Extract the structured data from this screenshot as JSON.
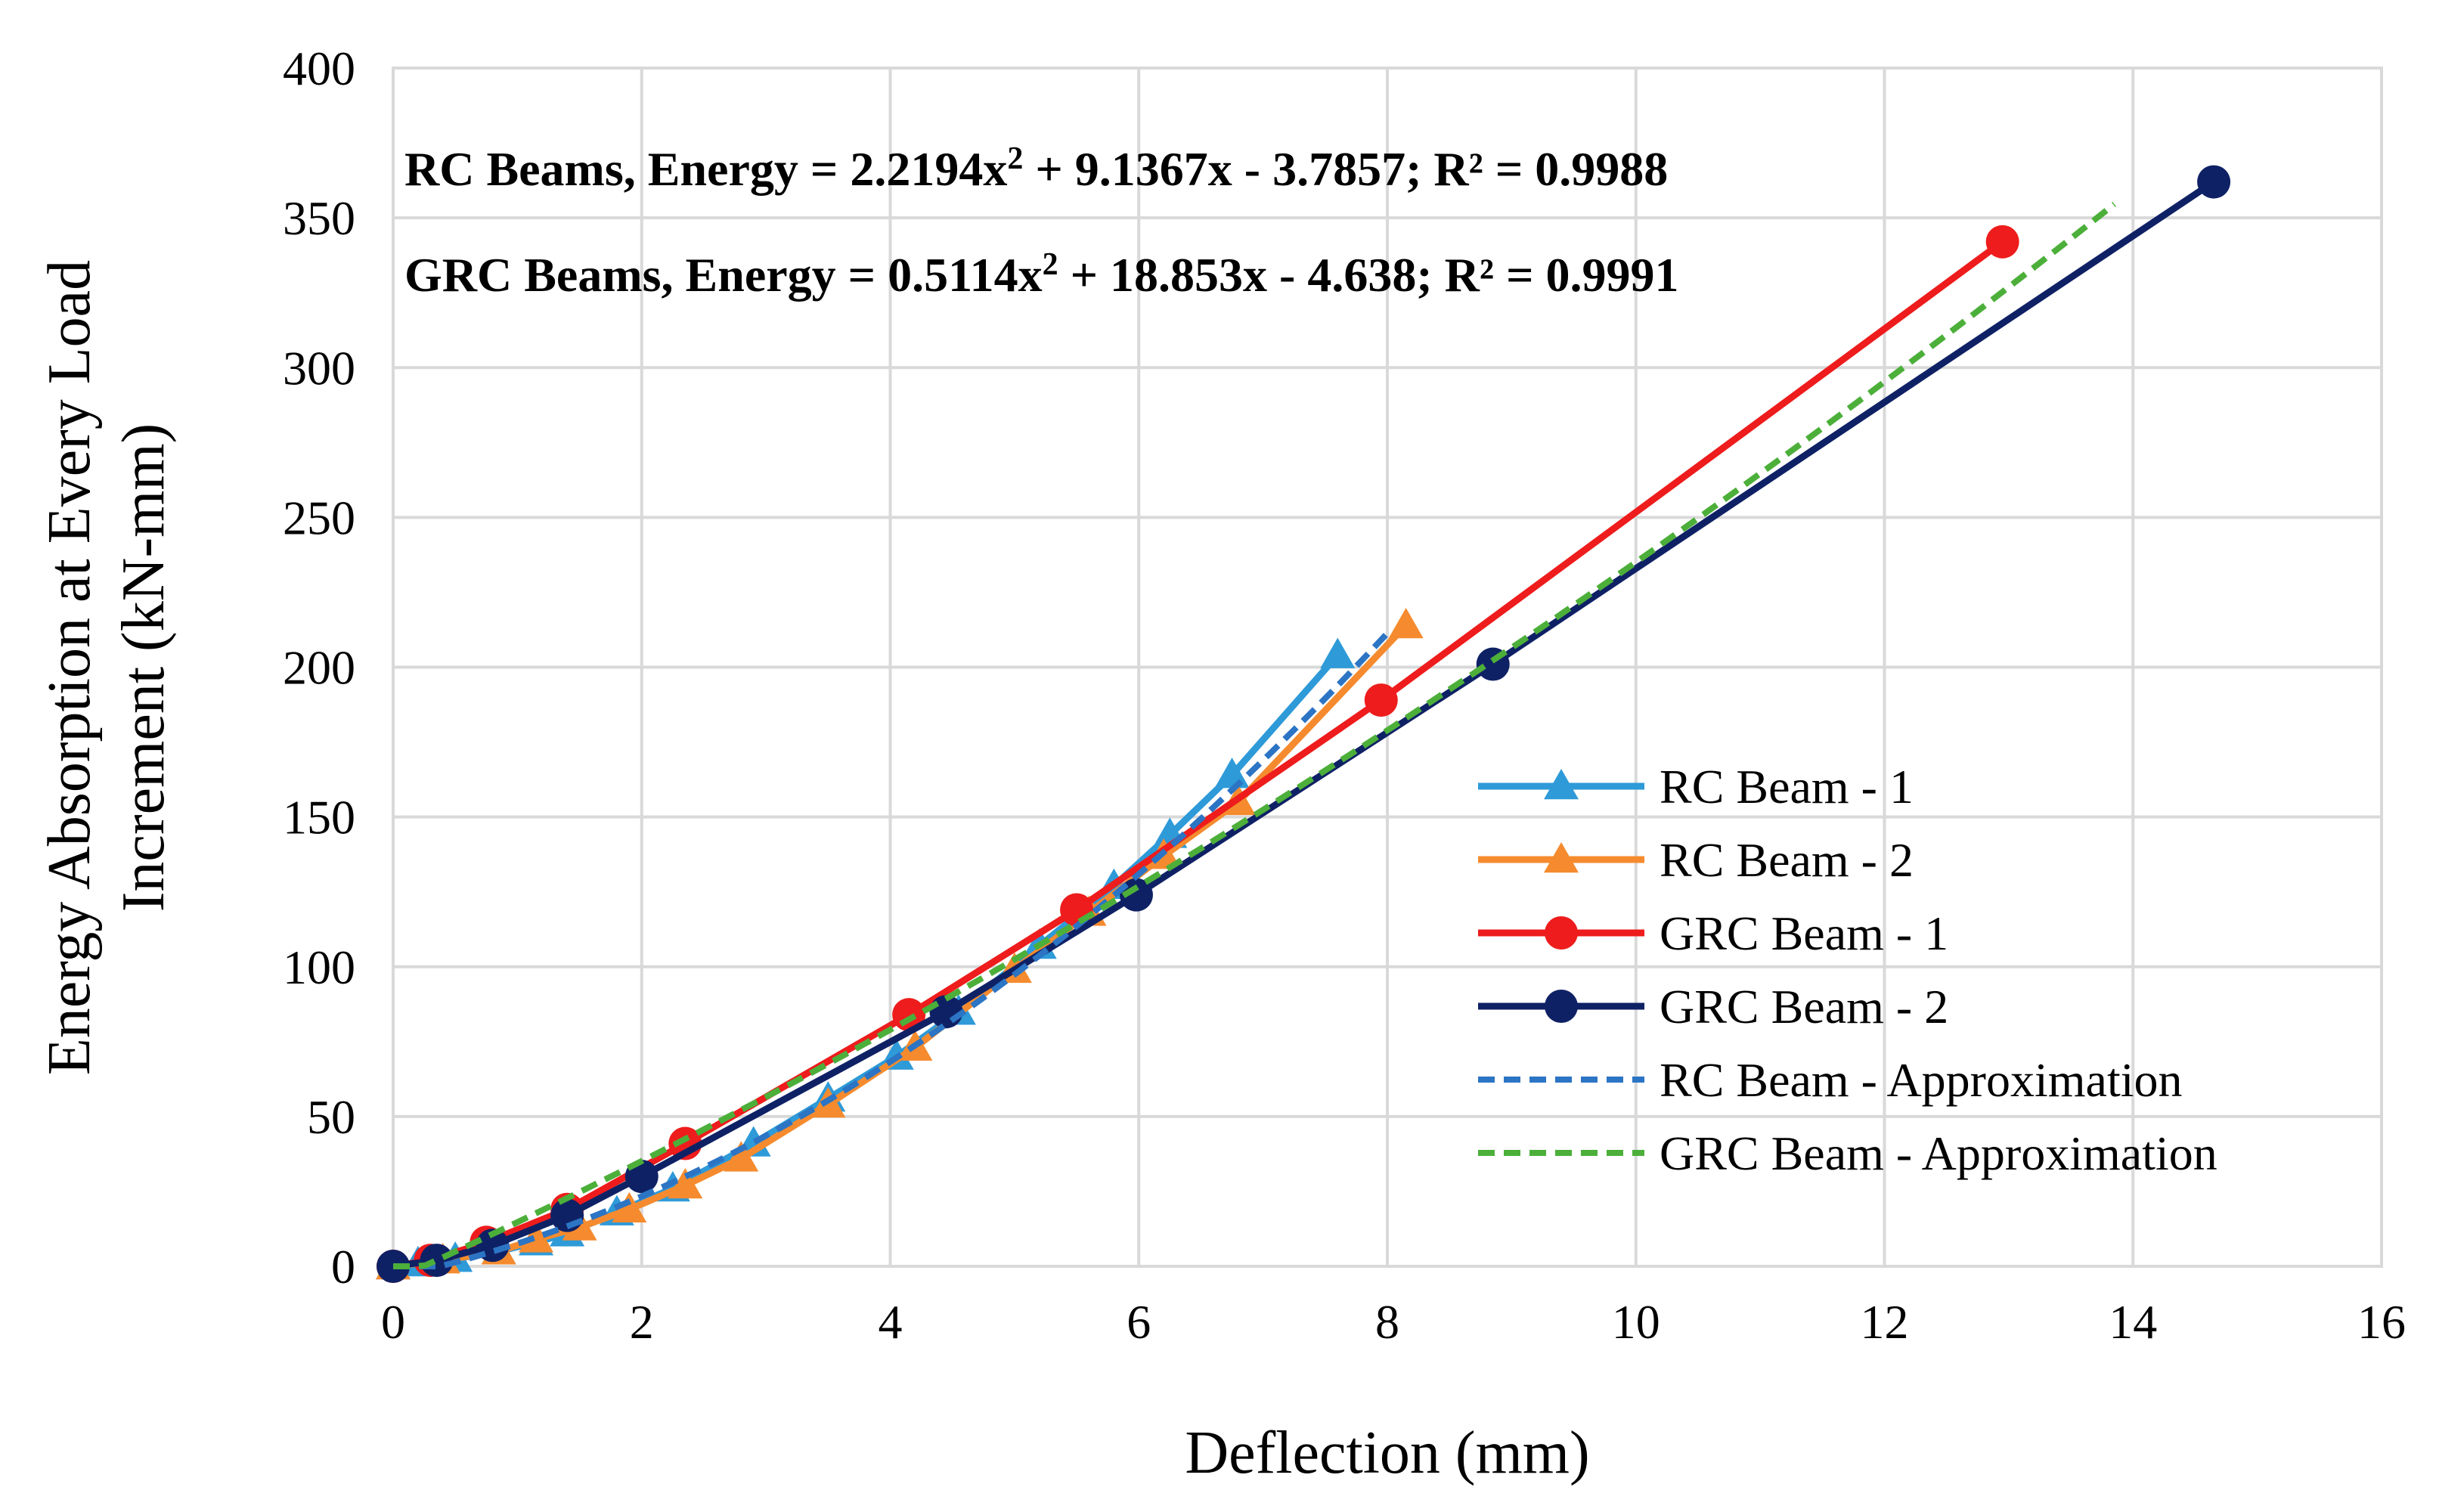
{
  "chart_data": {
    "type": "line",
    "title": "",
    "xlabel": "Deflection (mm)",
    "ylabel_line1": "Energy Absorption at Every Load",
    "ylabel_line2": "Increment (kN-mm)",
    "xlim": [
      0,
      16
    ],
    "ylim": [
      0,
      400
    ],
    "xticks": [
      0,
      2,
      4,
      6,
      8,
      10,
      12,
      14,
      16
    ],
    "yticks": [
      0,
      50,
      100,
      150,
      200,
      250,
      300,
      350,
      400
    ],
    "grid": true,
    "legend_position": "right",
    "annotations": [
      {
        "lead": "RC Beams, Energy = 2.2194x",
        "sup": "2",
        "tail": " + 9.1367x - 3.7857; R² = 0.9988"
      },
      {
        "lead": "GRC Beams, Energy = 0.5114x",
        "sup": "2",
        "tail": " + 18.853x - 4.638; R² = 0.9991"
      }
    ],
    "series": [
      {
        "name": "RC Beam - 1",
        "color": "#2e9ad8",
        "style": "solid",
        "marker": "triangle",
        "x": [
          0,
          0.2,
          0.5,
          0.85,
          1.15,
          1.4,
          1.8,
          2.25,
          2.9,
          3.5,
          4.05,
          4.55,
          5.2,
          5.8,
          6.25,
          6.75,
          7.6
        ],
        "y": [
          0,
          1,
          2.5,
          5,
          8,
          11,
          18,
          26,
          41,
          56,
          70,
          85,
          107,
          127,
          144,
          164,
          204
        ]
      },
      {
        "name": "RC Beam - 2",
        "color": "#f58b2e",
        "style": "solid",
        "marker": "triangle",
        "x": [
          0,
          0.4,
          0.85,
          1.15,
          1.5,
          1.9,
          2.35,
          2.8,
          3.5,
          4.2,
          5.0,
          5.6,
          6.2,
          6.8,
          8.15
        ],
        "y": [
          0,
          2,
          5,
          9,
          13,
          19,
          27,
          36,
          54,
          73,
          99,
          118,
          137,
          155,
          214
        ]
      },
      {
        "name": "GRC Beam - 1",
        "color": "#ee1c1c",
        "style": "solid",
        "marker": "circle",
        "x": [
          0,
          0.3,
          0.75,
          1.4,
          2.35,
          4.15,
          5.5,
          7.95,
          12.95
        ],
        "y": [
          0,
          2,
          8,
          19,
          41,
          84,
          119,
          189,
          342
        ]
      },
      {
        "name": "GRC Beam - 2",
        "color": "#0f2165",
        "style": "solid",
        "marker": "circle",
        "x": [
          0,
          0.35,
          0.8,
          1.4,
          2.0,
          4.45,
          5.98,
          8.85,
          14.65
        ],
        "y": [
          0,
          2,
          7,
          17,
          30,
          85,
          124,
          201,
          362
        ]
      },
      {
        "name": "RC Beam - Approximation",
        "color": "#2c74c4",
        "style": "dashed",
        "marker": "none",
        "fit": "rc",
        "fit_coeffs": [
          2.2194,
          9.1367,
          -3.7857
        ],
        "x_range": [
          0,
          8.0
        ]
      },
      {
        "name": "GRC Beam - Approximation",
        "color": "#4caf3a",
        "style": "dashed",
        "marker": "none",
        "fit": "grc",
        "fit_coeffs": [
          0.5114,
          18.853,
          -4.638
        ],
        "x_range": [
          0,
          13.85
        ]
      }
    ]
  }
}
